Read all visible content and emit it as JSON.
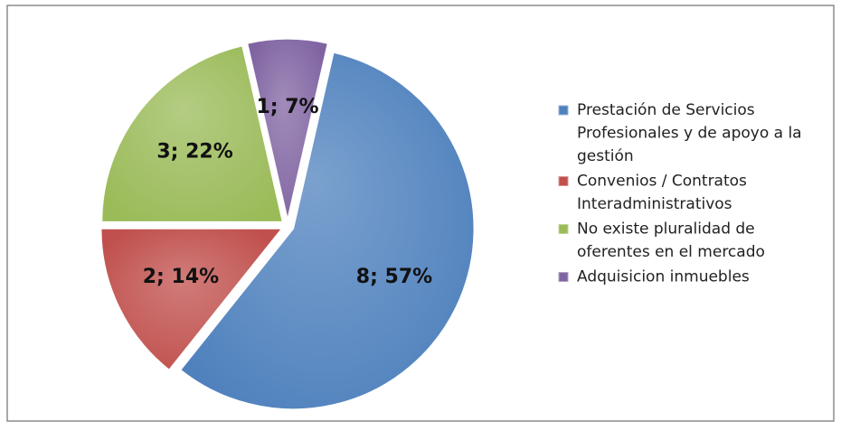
{
  "chart_data": {
    "type": "pie",
    "categories": [
      "Prestación de Servicios Profesionales y de apoyo a la gestión",
      "Convenios / Contratos Interadministrativos",
      "No existe pluralidad de oferentes en el mercado",
      "Adquisicion inmuebles"
    ],
    "values": [
      8,
      2,
      3,
      1
    ],
    "value_labels": [
      "8; 57%",
      "2; 14%",
      "3; 22%",
      "1; 7%"
    ],
    "colors": [
      "#4f81bd",
      "#c0504d",
      "#9bbb59",
      "#8064a2"
    ],
    "legend": "right"
  }
}
